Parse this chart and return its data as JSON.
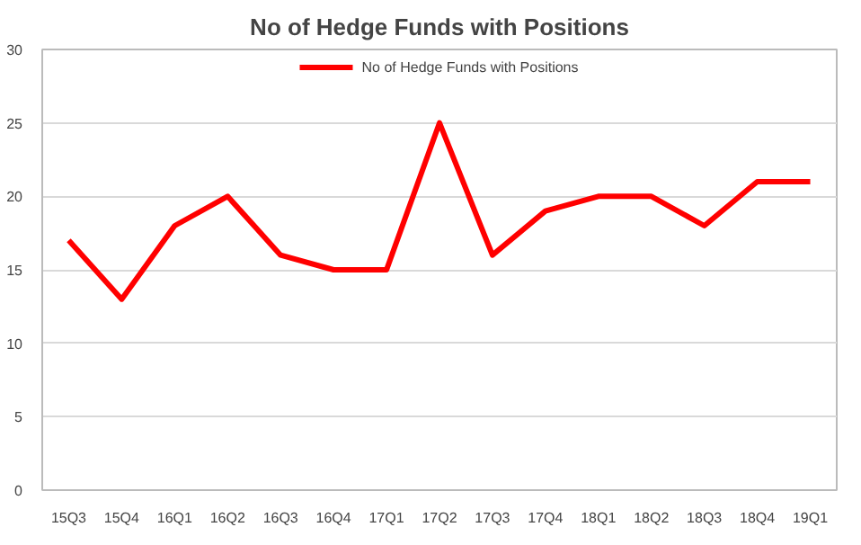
{
  "chart_data": {
    "type": "line",
    "title": "No of Hedge Funds with Positions",
    "categories": [
      "15Q3",
      "15Q4",
      "16Q1",
      "16Q2",
      "16Q3",
      "16Q4",
      "17Q1",
      "17Q2",
      "17Q3",
      "17Q4",
      "18Q1",
      "18Q2",
      "18Q3",
      "18Q4",
      "19Q1"
    ],
    "series": [
      {
        "name": "No of Hedge Funds with Positions",
        "color": "#ff0000",
        "values": [
          17,
          13,
          18,
          20,
          16,
          15,
          15,
          25,
          16,
          19,
          20,
          20,
          18,
          21,
          21
        ]
      }
    ],
    "ylim": [
      0,
      30
    ],
    "yticks": [
      0,
      5,
      10,
      15,
      20,
      25,
      30
    ],
    "grid": "y",
    "legend": "top",
    "marker": "none",
    "line_style": "solid"
  }
}
